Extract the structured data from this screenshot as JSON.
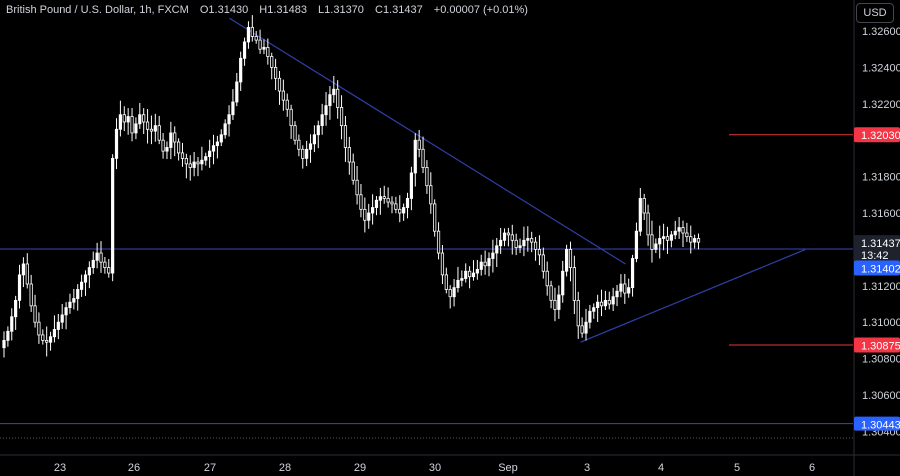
{
  "header": {
    "symbol": "British Pound / U.S. Dollar, 1h, FXCM",
    "open_label": "O",
    "open": "1.31430",
    "high_label": "H",
    "high": "1.31483",
    "low_label": "L",
    "low": "1.31370",
    "close_label": "C",
    "close": "1.31437",
    "change": "+0.00007 (+0.01%)"
  },
  "currency": "USD",
  "colors": {
    "background": "#000000",
    "candle": "#ffffff",
    "trendline": "#2f3fa8",
    "level_line": "#3a47b8",
    "red_line": "#e03a3a",
    "red_label": "#f23645",
    "blue_label": "#2962ff"
  },
  "chart_data": {
    "type": "candlestick",
    "ylim": [
      1.3037,
      1.3273
    ],
    "y_ticks": [
      "1.32600",
      "1.32400",
      "1.32200",
      "1.31800",
      "1.31600",
      "1.31200",
      "1.31000",
      "1.30800",
      "1.30600"
    ],
    "x_ticks": [
      "23",
      "26",
      "27",
      "28",
      "29",
      "30",
      "Sep",
      "3",
      "4",
      "5",
      "6"
    ],
    "price_labels": {
      "current_price": "1.31437",
      "countdown": "13:42",
      "level_1": "1.32030",
      "level_2": "1.31402",
      "level_3": "1.30875",
      "level_4": "1.30443",
      "level_4_hidden": "1.30400"
    },
    "horizontal_levels": [
      1.3203,
      1.31402,
      1.30875,
      1.30443
    ],
    "trendlines": [
      {
        "name": "descending",
        "from": [
          0.255,
          1.3267
        ],
        "to": [
          0.695,
          1.3132
        ]
      },
      {
        "name": "ascending",
        "from": [
          0.645,
          1.3089
        ],
        "to": [
          0.895,
          1.314
        ]
      }
    ],
    "closes": [
      1.309,
      1.3095,
      1.3103,
      1.3112,
      1.3126,
      1.3132,
      1.3121,
      1.3109,
      1.31,
      1.3093,
      1.309,
      1.3089,
      1.3092,
      1.3096,
      1.31,
      1.3104,
      1.3108,
      1.3111,
      1.3113,
      1.3118,
      1.3122,
      1.3126,
      1.313,
      1.3134,
      1.3138,
      1.3133,
      1.313,
      1.3127,
      1.319,
      1.3206,
      1.3214,
      1.321,
      1.3213,
      1.3204,
      1.3209,
      1.3214,
      1.321,
      1.3206,
      1.3205,
      1.3208,
      1.32,
      1.3194,
      1.3196,
      1.3204,
      1.3199,
      1.3193,
      1.319,
      1.3187,
      1.3185,
      1.3188,
      1.3187,
      1.3189,
      1.3191,
      1.3194,
      1.3197,
      1.3199,
      1.3203,
      1.3209,
      1.3214,
      1.3221,
      1.3232,
      1.3245,
      1.3254,
      1.3262,
      1.3257,
      1.3255,
      1.325,
      1.3251,
      1.3246,
      1.324,
      1.3234,
      1.3227,
      1.3222,
      1.3217,
      1.3208,
      1.32,
      1.3195,
      1.319,
      1.3195,
      1.3198,
      1.3203,
      1.3208,
      1.3214,
      1.3219,
      1.3225,
      1.3228,
      1.3218,
      1.3208,
      1.3196,
      1.3188,
      1.3178,
      1.317,
      1.3162,
      1.3156,
      1.316,
      1.3163,
      1.3167,
      1.3169,
      1.3168,
      1.3166,
      1.3165,
      1.3162,
      1.316,
      1.3163,
      1.3168,
      1.3182,
      1.32,
      1.3195,
      1.3185,
      1.3175,
      1.3165,
      1.315,
      1.3138,
      1.3126,
      1.3118,
      1.3114,
      1.3119,
      1.3123,
      1.3124,
      1.3128,
      1.3125,
      1.3127,
      1.3129,
      1.3133,
      1.3131,
      1.3135,
      1.3138,
      1.3142,
      1.3145,
      1.3149,
      1.3148,
      1.3145,
      1.3141,
      1.3142,
      1.3145,
      1.3146,
      1.3144,
      1.314,
      1.3137,
      1.3128,
      1.312,
      1.3112,
      1.3107,
      1.3115,
      1.3128,
      1.314,
      1.313,
      1.3112,
      1.3098,
      1.3094,
      1.31,
      1.3106,
      1.3108,
      1.3111,
      1.3109,
      1.3112,
      1.311,
      1.3114,
      1.3117,
      1.3121,
      1.3116,
      1.3119,
      1.3135,
      1.315,
      1.3168,
      1.316,
      1.3148,
      1.314,
      1.3143,
      1.3146,
      1.3147,
      1.3145,
      1.3148,
      1.315,
      1.3152,
      1.3149,
      1.3147,
      1.3144,
      1.3146,
      1.3144
    ]
  }
}
